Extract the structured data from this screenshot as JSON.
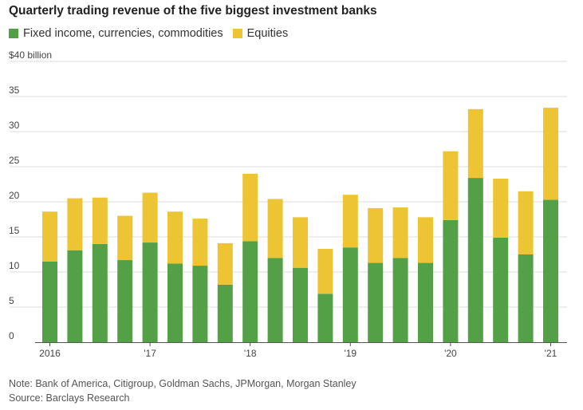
{
  "chart_data": {
    "type": "bar",
    "stacked": true,
    "title": "Quarterly trading revenue of the five biggest investment banks",
    "unit_label": "$40 billion",
    "ylim": [
      0,
      40
    ],
    "y_ticks": [
      0,
      5,
      10,
      15,
      20,
      25,
      30,
      35
    ],
    "grid": true,
    "legend_position": "top-left",
    "x_labels": [
      {
        "label": "2016",
        "index": 0
      },
      {
        "label": "'17",
        "index": 4
      },
      {
        "label": "'18",
        "index": 8
      },
      {
        "label": "'19",
        "index": 12
      },
      {
        "label": "'20",
        "index": 16
      },
      {
        "label": "'21",
        "index": 20
      }
    ],
    "categories": [
      "Q1 2016",
      "Q2 2016",
      "Q3 2016",
      "Q4 2016",
      "Q1 2017",
      "Q2 2017",
      "Q3 2017",
      "Q4 2017",
      "Q1 2018",
      "Q2 2018",
      "Q3 2018",
      "Q4 2018",
      "Q1 2019",
      "Q2 2019",
      "Q3 2019",
      "Q4 2019",
      "Q1 2020",
      "Q2 2020",
      "Q3 2020",
      "Q4 2020",
      "Q1 2021"
    ],
    "series": [
      {
        "name": "Fixed income, currencies, commodities",
        "color": "#54a046",
        "values": [
          11.5,
          13.1,
          14.0,
          11.7,
          14.2,
          11.2,
          10.9,
          8.2,
          14.4,
          12.0,
          10.6,
          6.9,
          13.5,
          11.3,
          12.0,
          11.3,
          17.4,
          23.4,
          14.9,
          12.5,
          20.3
        ]
      },
      {
        "name": "Equities",
        "color": "#ecc434",
        "values": [
          7.1,
          7.4,
          6.6,
          6.3,
          7.1,
          7.4,
          6.7,
          5.9,
          9.6,
          8.4,
          7.2,
          6.4,
          7.5,
          7.8,
          7.2,
          6.5,
          9.8,
          9.8,
          8.4,
          9.0,
          13.1
        ]
      }
    ]
  },
  "notes": {
    "note": "Note: Bank of America, Citigroup, Goldman Sachs, JPMorgan, Morgan Stanley",
    "source": "Source: Barclays Research"
  }
}
